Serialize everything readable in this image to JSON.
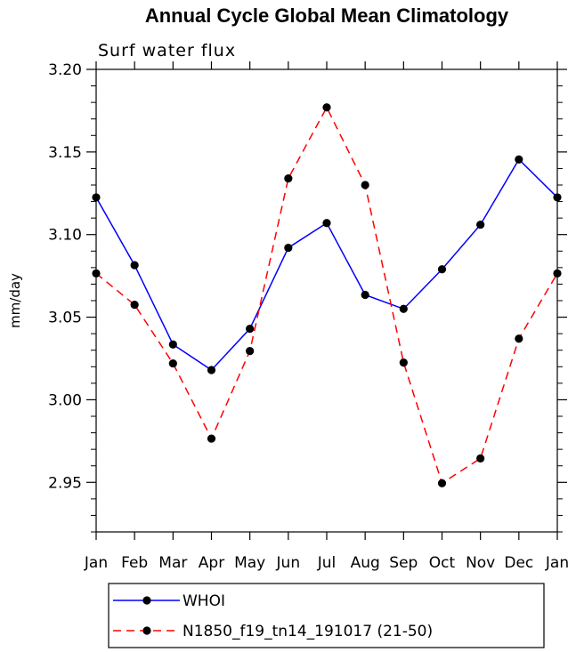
{
  "chart_data": {
    "type": "line",
    "title": "Annual Cycle Global Mean Climatology",
    "subtitle": "Surf water flux",
    "xlabel": "",
    "ylabel": "mm/day",
    "categories": [
      "Jan",
      "Feb",
      "Mar",
      "Apr",
      "May",
      "Jun",
      "Jul",
      "Aug",
      "Sep",
      "Oct",
      "Nov",
      "Dec",
      "Jan"
    ],
    "ylim": [
      2.92,
      3.2
    ],
    "yticks": [
      2.95,
      3.0,
      3.05,
      3.1,
      3.15,
      3.2
    ],
    "ytick_labels": [
      "2.95",
      "3.00",
      "3.05",
      "3.10",
      "3.15",
      "3.20"
    ],
    "grid": false,
    "legend_position": "bottom-left",
    "series": [
      {
        "name": "WHOI",
        "color": "#0000ff",
        "dash": "solid",
        "values": [
          3.1225,
          3.0815,
          3.0335,
          3.018,
          3.043,
          3.092,
          3.107,
          3.0635,
          3.055,
          3.079,
          3.106,
          3.1455,
          3.1225
        ]
      },
      {
        "name": "N1850_f19_tn14_191017 (21-50)",
        "color": "#ff0000",
        "dash": "dashed",
        "values": [
          3.0765,
          3.0575,
          3.022,
          2.9765,
          3.0295,
          3.134,
          3.177,
          3.13,
          3.0225,
          2.9495,
          2.9645,
          3.037,
          3.0765
        ]
      }
    ]
  }
}
